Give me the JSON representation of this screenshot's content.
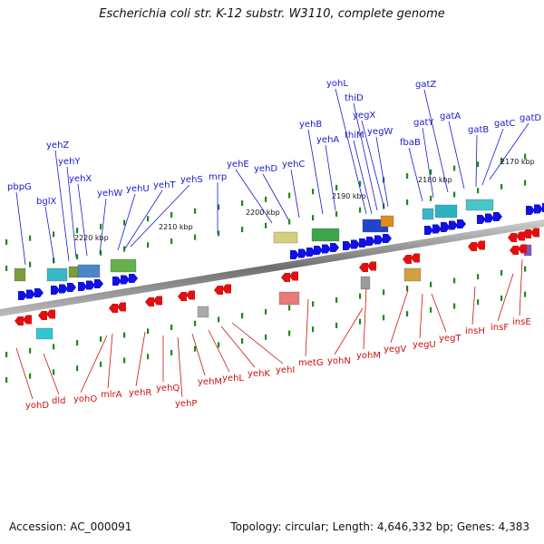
{
  "title": "Escherichia coli str. K-12 substr. W3110, complete genome",
  "accession": "Accession: AC_000091",
  "topology": "Topology: circular; Length: 4,646,332 bp; Genes: 4,383",
  "colors": {
    "forward": "#1010e0",
    "reverse": "#e01010",
    "backbone": "#808080",
    "tick": "#1a8a1a",
    "label_blue": "#1a1ad0",
    "label_red": "#cc1111"
  },
  "scale_labels": [
    "2170 kbp",
    "2180 kbp",
    "2190 kbp",
    "2200 kbp",
    "2210 kbp",
    "2220 kbp"
  ],
  "forward_genes": [
    "gatD",
    "gatC",
    "gatB",
    "gatA",
    "gatZ",
    "gatY",
    "fbaB",
    "yegW",
    "yegX",
    "thiD",
    "thiM",
    "yohL",
    "yehA",
    "yehB",
    "yehC",
    "yehD",
    "yehE",
    "mrp",
    "yehS",
    "yehT",
    "yehU",
    "yehW",
    "yehX",
    "yehY",
    "yehZ",
    "bglX",
    "pbpG"
  ],
  "reverse_genes": [
    "yohD",
    "dld",
    "yohO",
    "mlrA",
    "yehR",
    "yehQ",
    "yehP",
    "yehM",
    "yehL",
    "yehK",
    "yehI",
    "metG",
    "yohN",
    "yohM",
    "yegV",
    "yegU",
    "yegT",
    "insH",
    "insF",
    "insE"
  ]
}
